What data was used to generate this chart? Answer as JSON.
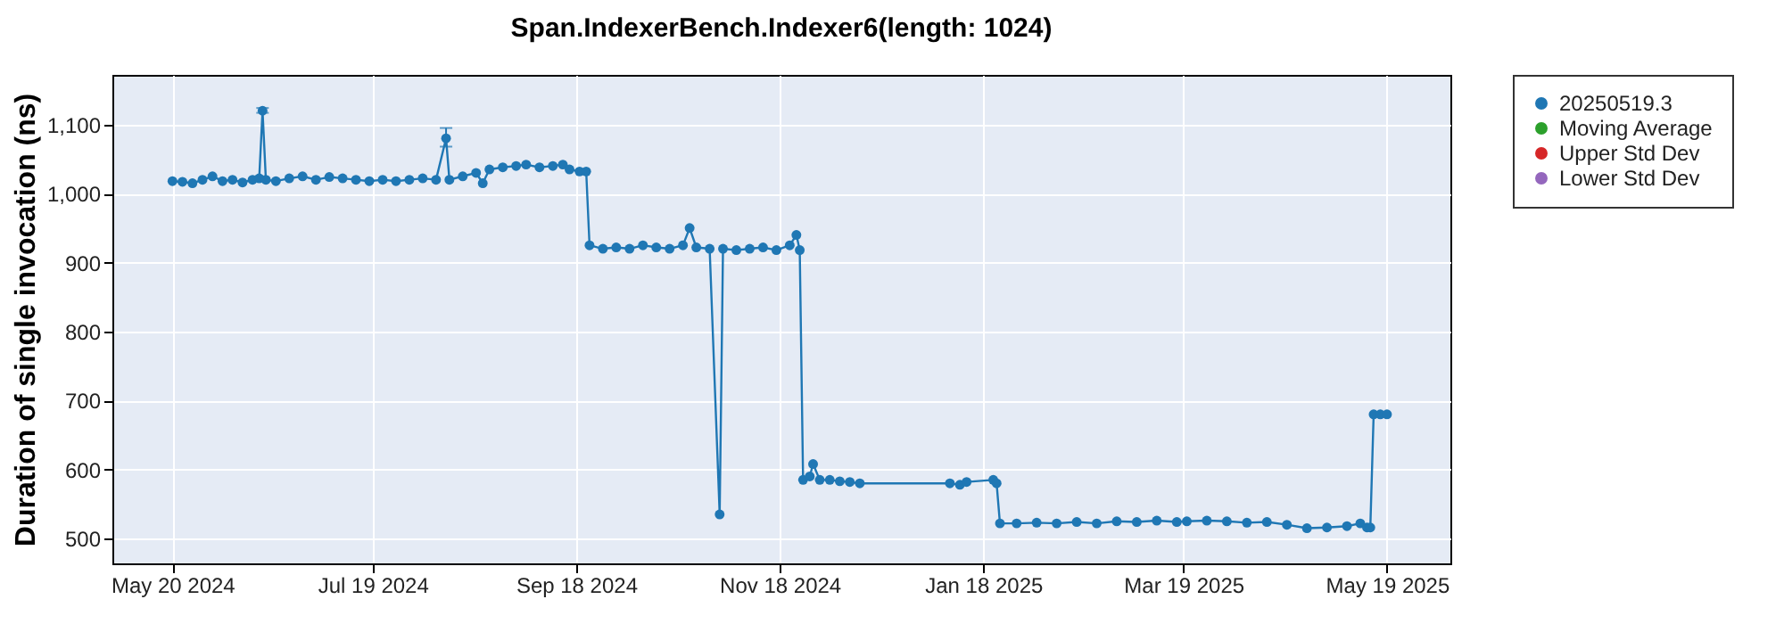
{
  "chart_data": {
    "type": "line",
    "title": "Span.IndexerBench.Indexer6(length: 1024)",
    "ylabel": "Duration of single invocation (ns)",
    "x": [
      "2024-05-20",
      "2024-05-23",
      "2024-05-26",
      "2024-05-29",
      "2024-06-01",
      "2024-06-04",
      "2024-06-07",
      "2024-06-10",
      "2024-06-13",
      "2024-06-15",
      "2024-06-16",
      "2024-06-17",
      "2024-06-20",
      "2024-06-24",
      "2024-06-28",
      "2024-07-02",
      "2024-07-06",
      "2024-07-10",
      "2024-07-14",
      "2024-07-18",
      "2024-07-22",
      "2024-07-26",
      "2024-07-30",
      "2024-08-03",
      "2024-08-07",
      "2024-08-10",
      "2024-08-11",
      "2024-08-15",
      "2024-08-19",
      "2024-08-21",
      "2024-08-23",
      "2024-08-27",
      "2024-08-31",
      "2024-09-03",
      "2024-09-07",
      "2024-09-11",
      "2024-09-14",
      "2024-09-16",
      "2024-09-19",
      "2024-09-21",
      "2024-09-22",
      "2024-09-26",
      "2024-09-30",
      "2024-10-04",
      "2024-10-08",
      "2024-10-12",
      "2024-10-16",
      "2024-10-20",
      "2024-10-22",
      "2024-10-24",
      "2024-10-28",
      "2024-10-31",
      "2024-11-01",
      "2024-11-05",
      "2024-11-09",
      "2024-11-13",
      "2024-11-17",
      "2024-11-21",
      "2024-11-23",
      "2024-11-24",
      "2024-11-25",
      "2024-11-27",
      "2024-11-28",
      "2024-11-30",
      "2024-12-03",
      "2024-12-06",
      "2024-12-09",
      "2024-12-12",
      "2025-01-08",
      "2025-01-11",
      "2025-01-13",
      "2025-01-21",
      "2025-01-22",
      "2025-01-23",
      "2025-01-28",
      "2025-02-03",
      "2025-02-09",
      "2025-02-15",
      "2025-02-21",
      "2025-02-27",
      "2025-03-05",
      "2025-03-11",
      "2025-03-17",
      "2025-03-20",
      "2025-03-26",
      "2025-04-01",
      "2025-04-07",
      "2025-04-13",
      "2025-04-19",
      "2025-04-25",
      "2025-05-01",
      "2025-05-07",
      "2025-05-11",
      "2025-05-13",
      "2025-05-14",
      "2025-05-15",
      "2025-05-17",
      "2025-05-19"
    ],
    "series": [
      {
        "name": "20250519.3",
        "color": "#1f77b4",
        "values": [
          1018,
          1017,
          1015,
          1020,
          1025,
          1018,
          1020,
          1016,
          1020,
          1022,
          1120,
          1020,
          1018,
          1022,
          1025,
          1020,
          1024,
          1022,
          1020,
          1018,
          1020,
          1018,
          1020,
          1022,
          1020,
          1080,
          1020,
          1025,
          1030,
          1015,
          1035,
          1038,
          1040,
          1042,
          1038,
          1040,
          1042,
          1035,
          1032,
          1032,
          925,
          920,
          922,
          920,
          925,
          922,
          920,
          925,
          950,
          922,
          920,
          535,
          920,
          918,
          920,
          922,
          918,
          925,
          940,
          918,
          585,
          590,
          608,
          585,
          585,
          583,
          582,
          580,
          580,
          578,
          582,
          585,
          580,
          522,
          522,
          523,
          522,
          524,
          522,
          525,
          524,
          526,
          524,
          525,
          526,
          525,
          523,
          524,
          520,
          515,
          516,
          518,
          522,
          516,
          516,
          680,
          680,
          680
        ],
        "errors": [
          null,
          null,
          null,
          null,
          null,
          null,
          null,
          null,
          null,
          null,
          [
            1117,
            1124
          ],
          null,
          null,
          null,
          null,
          null,
          null,
          null,
          null,
          null,
          null,
          null,
          null,
          null,
          null,
          [
            1068,
            1095
          ],
          null,
          null,
          null,
          null,
          null,
          null,
          null,
          null,
          null,
          null,
          null,
          null,
          null,
          null,
          null,
          null,
          null,
          null,
          null,
          null,
          null,
          null,
          null,
          null,
          null,
          null,
          null,
          null,
          null,
          null,
          null,
          null,
          null,
          null,
          null,
          null,
          null,
          null,
          null,
          null,
          null,
          null,
          null,
          null,
          null,
          null,
          null,
          null,
          null,
          null,
          null,
          null,
          null,
          null,
          null,
          null,
          null,
          null,
          null,
          null,
          null,
          null,
          null,
          null,
          null,
          null,
          null,
          null,
          null,
          null,
          null,
          null
        ]
      },
      {
        "name": "Moving Average",
        "color": "#2ca02c",
        "values": [
          null,
          null,
          null,
          null,
          null,
          null,
          null,
          null,
          null,
          null,
          null,
          null,
          null,
          null,
          null,
          null,
          null,
          null,
          null,
          null,
          null,
          null,
          null,
          null,
          null,
          null,
          null,
          null,
          null,
          null,
          null,
          null,
          null,
          null,
          null,
          null,
          null,
          null,
          null,
          null,
          null,
          null,
          null,
          null,
          null,
          null,
          null,
          null,
          null,
          null,
          null,
          null,
          null,
          null,
          null,
          null,
          null,
          null,
          null,
          null,
          null,
          null,
          null,
          null,
          null,
          null,
          null,
          null,
          null,
          null,
          null,
          null,
          null,
          null,
          null,
          null,
          null,
          null,
          null,
          null,
          null,
          null,
          null,
          null,
          null,
          null,
          null,
          null,
          null,
          null,
          null,
          null,
          null,
          null,
          null,
          null,
          null,
          null
        ]
      },
      {
        "name": "Upper Std Dev",
        "color": "#d62728",
        "values": [
          null,
          null,
          null,
          null,
          null,
          null,
          null,
          null,
          null,
          null,
          null,
          null,
          null,
          null,
          null,
          null,
          null,
          null,
          null,
          null,
          null,
          null,
          null,
          null,
          null,
          null,
          null,
          null,
          null,
          null,
          null,
          null,
          null,
          null,
          null,
          null,
          null,
          null,
          null,
          null,
          null,
          null,
          null,
          null,
          null,
          null,
          null,
          null,
          null,
          null,
          null,
          null,
          null,
          null,
          null,
          null,
          null,
          null,
          null,
          null,
          null,
          null,
          null,
          null,
          null,
          null,
          null,
          null,
          null,
          null,
          null,
          null,
          null,
          null,
          null,
          null,
          null,
          null,
          null,
          null,
          null,
          null,
          null,
          null,
          null,
          null,
          null,
          null,
          null,
          null,
          null,
          null,
          null,
          null,
          null,
          null,
          null,
          null
        ]
      },
      {
        "name": "Lower Std Dev",
        "color": "#9467bd",
        "values": [
          null,
          null,
          null,
          null,
          null,
          null,
          null,
          null,
          null,
          null,
          null,
          null,
          null,
          null,
          null,
          null,
          null,
          null,
          null,
          null,
          null,
          null,
          null,
          null,
          null,
          null,
          null,
          null,
          null,
          null,
          null,
          null,
          null,
          null,
          null,
          null,
          null,
          null,
          null,
          null,
          null,
          null,
          null,
          null,
          null,
          null,
          null,
          null,
          null,
          null,
          null,
          null,
          null,
          null,
          null,
          null,
          null,
          null,
          null,
          null,
          null,
          null,
          null,
          null,
          null,
          null,
          null,
          null,
          null,
          null,
          null,
          null,
          null,
          null,
          null,
          null,
          null,
          null,
          null,
          null,
          null,
          null,
          null,
          null,
          null,
          null,
          null,
          null,
          null,
          null,
          null,
          null,
          null,
          null,
          null,
          null,
          null,
          null
        ]
      }
    ],
    "xlim": [
      "2024-05-02",
      "2025-06-07"
    ],
    "xticks": [
      {
        "value": "2024-05-20",
        "label": "May 20 2024"
      },
      {
        "value": "2024-07-19",
        "label": "Jul 19 2024"
      },
      {
        "value": "2024-09-18",
        "label": "Sep 18 2024"
      },
      {
        "value": "2024-11-18",
        "label": "Nov 18 2024"
      },
      {
        "value": "2025-01-18",
        "label": "Jan 18 2025"
      },
      {
        "value": "2025-03-19",
        "label": "Mar 19 2025"
      },
      {
        "value": "2025-05-19",
        "label": "May 19 2025"
      }
    ],
    "ylim": [
      464,
      1172
    ],
    "yticks": [
      500,
      600,
      700,
      800,
      900,
      {
        "value": 1000,
        "label": "1,000"
      },
      {
        "value": 1100,
        "label": "1,100"
      }
    ],
    "grid": true,
    "legend": "right",
    "marker": "circle",
    "line_style": "solid"
  }
}
